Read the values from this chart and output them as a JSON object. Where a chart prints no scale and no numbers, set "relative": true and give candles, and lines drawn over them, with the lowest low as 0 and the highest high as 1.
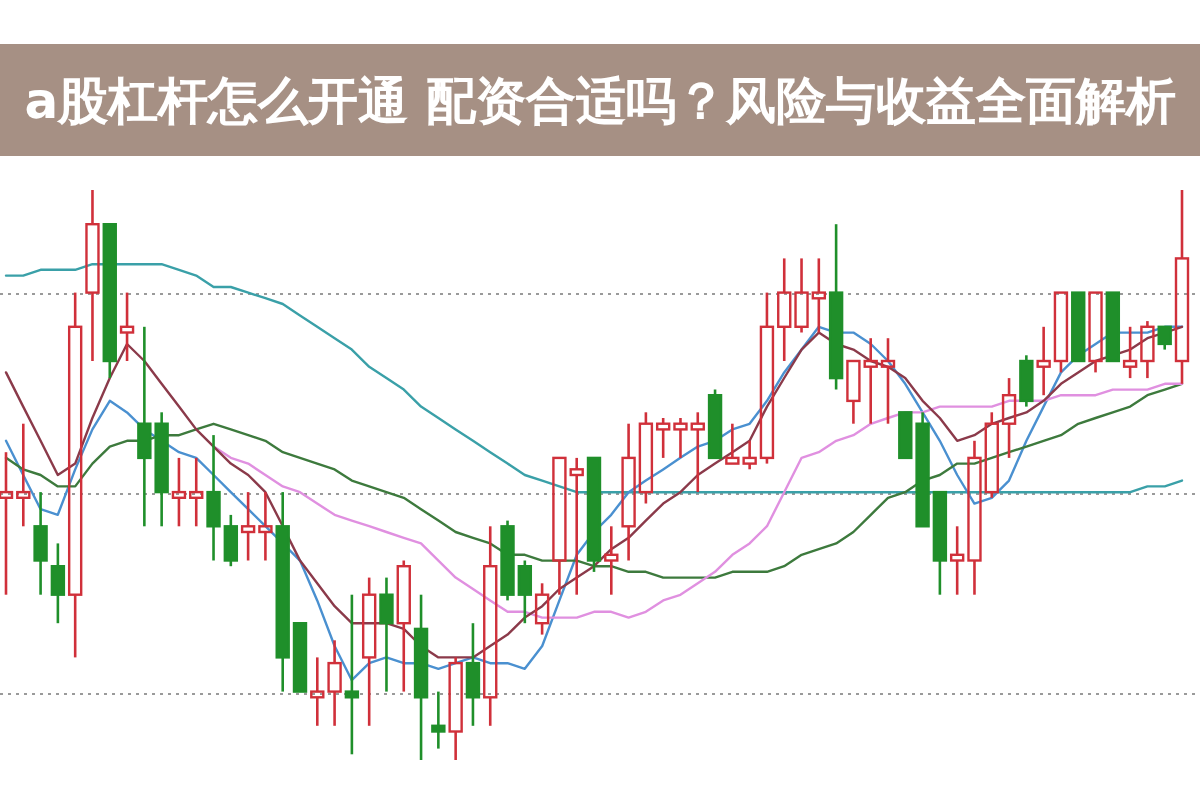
{
  "chart_data": {
    "type": "candlestick",
    "title": "a股杠杆怎么开通 配资合适吗？风险与收益全面解析",
    "relative": true,
    "grid": "y",
    "categories": [
      null,
      null,
      null,
      null,
      null,
      null,
      null,
      null,
      null,
      null,
      null,
      null,
      null,
      null,
      null,
      null,
      null,
      null,
      null,
      null,
      null,
      null,
      null,
      null,
      null,
      null,
      null,
      null,
      null,
      null,
      null,
      null,
      null,
      null,
      null,
      null,
      null,
      null,
      null,
      null,
      null,
      null,
      null,
      null,
      null,
      null,
      null,
      null,
      null,
      null,
      null,
      null,
      null,
      null,
      null,
      null,
      null,
      null,
      null,
      null,
      null,
      null,
      null,
      null,
      null,
      null,
      null,
      null,
      null
    ],
    "ohlc": [
      [
        0.46,
        0.54,
        0.29,
        0.47
      ],
      [
        0.46,
        0.59,
        0.41,
        0.47
      ],
      [
        0.41,
        0.47,
        0.29,
        0.35
      ],
      [
        0.34,
        0.38,
        0.24,
        0.29
      ],
      [
        0.29,
        0.82,
        0.18,
        0.76
      ],
      [
        0.82,
        1.0,
        0.7,
        0.94
      ],
      [
        0.94,
        0.94,
        0.67,
        0.7
      ],
      [
        0.75,
        0.82,
        0.7,
        0.76
      ],
      [
        0.59,
        0.76,
        0.41,
        0.53
      ],
      [
        0.59,
        0.61,
        0.41,
        0.47
      ],
      [
        0.46,
        0.53,
        0.41,
        0.47
      ],
      [
        0.46,
        0.53,
        0.41,
        0.47
      ],
      [
        0.47,
        0.57,
        0.35,
        0.41
      ],
      [
        0.41,
        0.43,
        0.34,
        0.35
      ],
      [
        0.4,
        0.47,
        0.35,
        0.41
      ],
      [
        0.4,
        0.47,
        0.35,
        0.41
      ],
      [
        0.41,
        0.47,
        0.12,
        0.18
      ],
      [
        0.24,
        0.24,
        0.12,
        0.12
      ],
      [
        0.11,
        0.18,
        0.06,
        0.12
      ],
      [
        0.12,
        0.21,
        0.06,
        0.17
      ],
      [
        0.12,
        0.29,
        0.01,
        0.11
      ],
      [
        0.18,
        0.32,
        0.06,
        0.29
      ],
      [
        0.29,
        0.32,
        0.12,
        0.24
      ],
      [
        0.24,
        0.35,
        0.12,
        0.34
      ],
      [
        0.23,
        0.29,
        0.0,
        0.11
      ],
      [
        0.06,
        0.12,
        0.02,
        0.05
      ],
      [
        0.05,
        0.18,
        0.0,
        0.17
      ],
      [
        0.17,
        0.24,
        0.06,
        0.11
      ],
      [
        0.11,
        0.41,
        0.06,
        0.34
      ],
      [
        0.41,
        0.42,
        0.28,
        0.29
      ],
      [
        0.34,
        0.35,
        0.24,
        0.29
      ],
      [
        0.24,
        0.31,
        0.22,
        0.29
      ],
      [
        0.35,
        0.53,
        0.29,
        0.53
      ],
      [
        0.5,
        0.53,
        0.29,
        0.51
      ],
      [
        0.53,
        0.53,
        0.33,
        0.35
      ],
      [
        0.35,
        0.41,
        0.29,
        0.36
      ],
      [
        0.41,
        0.59,
        0.35,
        0.53
      ],
      [
        0.47,
        0.61,
        0.45,
        0.59
      ],
      [
        0.58,
        0.6,
        0.53,
        0.59
      ],
      [
        0.58,
        0.6,
        0.53,
        0.59
      ],
      [
        0.58,
        0.61,
        0.47,
        0.59
      ],
      [
        0.64,
        0.65,
        0.53,
        0.53
      ],
      [
        0.52,
        0.59,
        0.52,
        0.53
      ],
      [
        0.52,
        0.56,
        0.51,
        0.53
      ],
      [
        0.53,
        0.82,
        0.52,
        0.76
      ],
      [
        0.76,
        0.88,
        0.7,
        0.82
      ],
      [
        0.76,
        0.88,
        0.75,
        0.82
      ],
      [
        0.81,
        0.88,
        0.75,
        0.82
      ],
      [
        0.82,
        0.94,
        0.65,
        0.67
      ],
      [
        0.63,
        0.7,
        0.59,
        0.7
      ],
      [
        0.69,
        0.74,
        0.59,
        0.7
      ],
      [
        0.69,
        0.74,
        0.59,
        0.7
      ],
      [
        0.61,
        0.61,
        0.53,
        0.53
      ],
      [
        0.59,
        0.61,
        0.41,
        0.41
      ],
      [
        0.47,
        0.47,
        0.29,
        0.35
      ],
      [
        0.35,
        0.41,
        0.29,
        0.36
      ],
      [
        0.35,
        0.56,
        0.29,
        0.53
      ],
      [
        0.47,
        0.61,
        0.46,
        0.59
      ],
      [
        0.59,
        0.67,
        0.53,
        0.64
      ],
      [
        0.7,
        0.71,
        0.62,
        0.63
      ],
      [
        0.69,
        0.76,
        0.64,
        0.7
      ],
      [
        0.7,
        0.82,
        0.68,
        0.82
      ],
      [
        0.82,
        0.82,
        0.7,
        0.7
      ],
      [
        0.7,
        0.82,
        0.68,
        0.82
      ],
      [
        0.82,
        0.82,
        0.7,
        0.7
      ],
      [
        0.69,
        0.76,
        0.67,
        0.7
      ],
      [
        0.7,
        0.77,
        0.67,
        0.76
      ],
      [
        0.76,
        0.76,
        0.72,
        0.73
      ],
      [
        0.7,
        1.0,
        0.66,
        0.88
      ]
    ],
    "series": [
      {
        "type": "line",
        "color": "#3aa0a8",
        "values": [
          0.85,
          0.85,
          0.86,
          0.86,
          0.86,
          0.87,
          0.87,
          0.87,
          0.87,
          0.87,
          0.86,
          0.85,
          0.83,
          0.83,
          0.82,
          0.81,
          0.8,
          0.78,
          0.76,
          0.74,
          0.72,
          0.69,
          0.67,
          0.65,
          0.62,
          0.6,
          0.58,
          0.56,
          0.54,
          0.52,
          0.5,
          0.49,
          0.48,
          0.47,
          0.47,
          0.47,
          0.47,
          0.47,
          0.47,
          0.47,
          0.47,
          0.47,
          0.47,
          0.47,
          0.47,
          0.47,
          0.47,
          0.47,
          0.47,
          0.47,
          0.47,
          0.47,
          0.47,
          0.47,
          0.47,
          0.47,
          0.47,
          0.47,
          0.47,
          0.47,
          0.47,
          0.47,
          0.47,
          0.47,
          0.47,
          0.47,
          0.48,
          0.48,
          0.49
        ]
      },
      {
        "type": "line",
        "color": "#4a90d0",
        "values": [
          0.56,
          0.5,
          0.44,
          0.43,
          0.51,
          0.58,
          0.63,
          0.61,
          0.58,
          0.56,
          0.54,
          0.53,
          0.5,
          0.47,
          0.44,
          0.41,
          0.38,
          0.35,
          0.28,
          0.2,
          0.14,
          0.17,
          0.18,
          0.17,
          0.17,
          0.16,
          0.17,
          0.18,
          0.17,
          0.17,
          0.16,
          0.2,
          0.28,
          0.36,
          0.4,
          0.43,
          0.47,
          0.49,
          0.51,
          0.53,
          0.55,
          0.56,
          0.58,
          0.59,
          0.63,
          0.68,
          0.72,
          0.76,
          0.75,
          0.75,
          0.73,
          0.7,
          0.66,
          0.61,
          0.56,
          0.5,
          0.45,
          0.46,
          0.49,
          0.56,
          0.62,
          0.68,
          0.71,
          0.73,
          0.75,
          0.75,
          0.75,
          0.76,
          0.76
        ]
      },
      {
        "type": "line",
        "color": "#3d7a3d",
        "values": [
          0.53,
          0.51,
          0.5,
          0.48,
          0.48,
          0.52,
          0.55,
          0.56,
          0.56,
          0.57,
          0.57,
          0.58,
          0.59,
          0.58,
          0.57,
          0.56,
          0.54,
          0.53,
          0.52,
          0.51,
          0.49,
          0.48,
          0.47,
          0.46,
          0.44,
          0.42,
          0.4,
          0.39,
          0.38,
          0.36,
          0.36,
          0.35,
          0.35,
          0.35,
          0.34,
          0.34,
          0.33,
          0.33,
          0.32,
          0.32,
          0.32,
          0.32,
          0.33,
          0.33,
          0.33,
          0.34,
          0.36,
          0.37,
          0.38,
          0.4,
          0.43,
          0.46,
          0.47,
          0.49,
          0.5,
          0.52,
          0.52,
          0.53,
          0.54,
          0.55,
          0.56,
          0.57,
          0.59,
          0.6,
          0.61,
          0.62,
          0.64,
          0.65,
          0.66
        ]
      },
      {
        "type": "line",
        "color": "#e090e0",
        "values": [
          null,
          null,
          null,
          null,
          null,
          null,
          null,
          null,
          null,
          null,
          null,
          null,
          0.55,
          0.53,
          0.52,
          0.5,
          0.48,
          0.47,
          0.45,
          0.43,
          0.42,
          0.41,
          0.4,
          0.39,
          0.38,
          0.35,
          0.32,
          0.3,
          0.28,
          0.26,
          0.26,
          0.25,
          0.25,
          0.25,
          0.26,
          0.26,
          0.25,
          0.26,
          0.28,
          0.29,
          0.31,
          0.33,
          0.36,
          0.38,
          0.41,
          0.47,
          0.53,
          0.54,
          0.56,
          0.57,
          0.59,
          0.6,
          0.61,
          0.61,
          0.62,
          0.62,
          0.62,
          0.62,
          0.63,
          0.63,
          0.63,
          0.64,
          0.64,
          0.64,
          0.65,
          0.65,
          0.65,
          0.66,
          0.66
        ]
      },
      {
        "type": "line",
        "color": "#8b3a4a",
        "values": [
          0.68,
          0.62,
          0.56,
          0.5,
          0.52,
          0.6,
          0.67,
          0.73,
          0.7,
          0.66,
          0.62,
          0.58,
          0.55,
          0.52,
          0.5,
          0.47,
          0.41,
          0.35,
          0.31,
          0.27,
          0.24,
          0.24,
          0.24,
          0.23,
          0.2,
          0.18,
          0.18,
          0.18,
          0.2,
          0.22,
          0.25,
          0.27,
          0.3,
          0.32,
          0.34,
          0.37,
          0.39,
          0.42,
          0.45,
          0.47,
          0.5,
          0.52,
          0.54,
          0.56,
          0.62,
          0.67,
          0.72,
          0.75,
          0.73,
          0.72,
          0.7,
          0.69,
          0.67,
          0.63,
          0.6,
          0.56,
          0.57,
          0.59,
          0.6,
          0.61,
          0.63,
          0.66,
          0.68,
          0.7,
          0.71,
          0.72,
          0.74,
          0.75,
          0.76
        ]
      }
    ]
  }
}
